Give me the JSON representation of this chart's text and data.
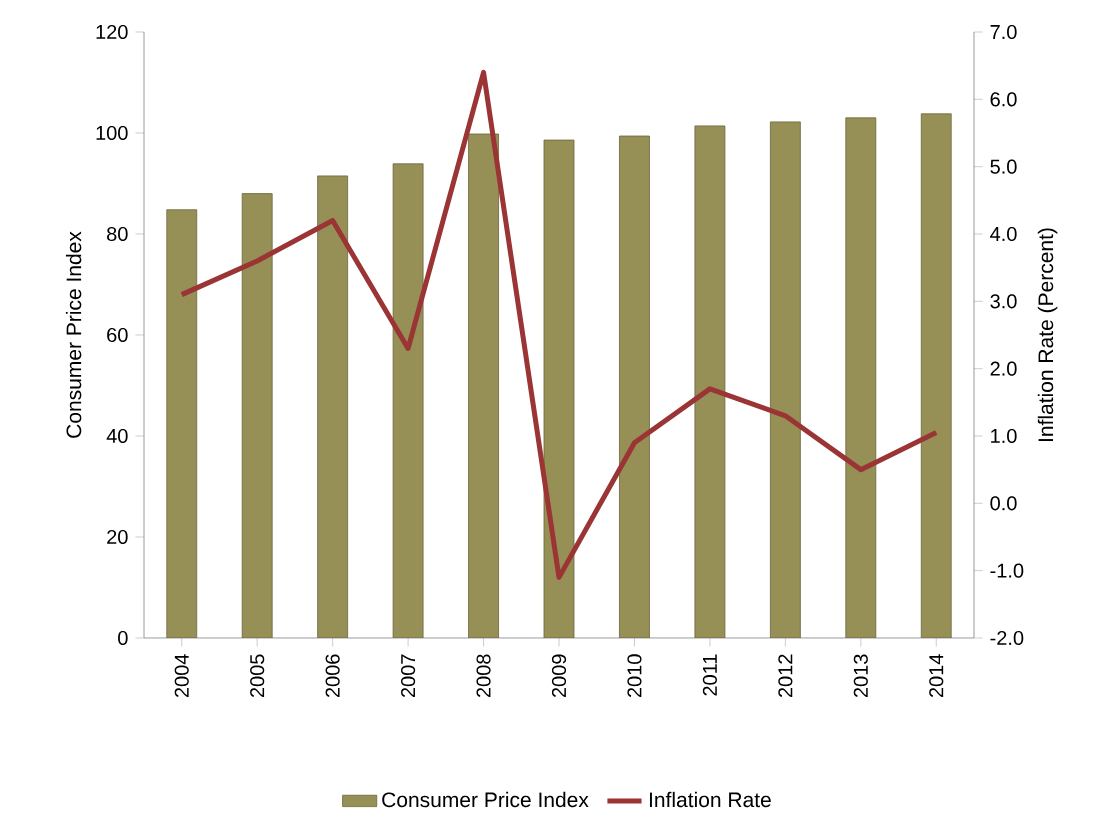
{
  "chart_data": {
    "type": "bar",
    "categories": [
      "2004",
      "2005",
      "2006",
      "2007",
      "2008",
      "2009",
      "2010",
      "2011",
      "2012",
      "2013",
      "2014"
    ],
    "series": [
      {
        "name": "Consumer Price Index",
        "color": "#968f56",
        "values": [
          84.8,
          88.0,
          91.5,
          93.9,
          99.8,
          98.6,
          99.4,
          101.4,
          102.2,
          103.0,
          103.8
        ]
      },
      {
        "name": "Inflation Rate",
        "type": "line",
        "axis": "y2",
        "color": "#9b3434",
        "values": [
          3.1,
          3.6,
          4.2,
          2.3,
          6.4,
          -1.1,
          0.9,
          1.7,
          1.3,
          0.5,
          1.05
        ]
      }
    ],
    "ylabel": "Consumer Price Index",
    "y2label": "Inflation Rate (Percent)",
    "ylim": [
      0,
      120
    ],
    "yticks": [
      0,
      20,
      40,
      60,
      80,
      100,
      120
    ],
    "y2lim": [
      -2,
      7
    ],
    "y2ticks": [
      {
        "value": -2,
        "label": "-2.0"
      },
      {
        "value": -1,
        "label": "-1.0"
      },
      {
        "value": 0,
        "label": "0.0"
      },
      {
        "value": 1,
        "label": "1.0"
      },
      {
        "value": 2,
        "label": "2.0"
      },
      {
        "value": 3,
        "label": "3.0"
      },
      {
        "value": 4,
        "label": "4.0"
      },
      {
        "value": 5,
        "label": "5.0"
      },
      {
        "value": 6,
        "label": "6.0"
      },
      {
        "value": 7,
        "label": "7.0"
      }
    ],
    "legend": "bottom",
    "grid": false,
    "marker": "none"
  }
}
